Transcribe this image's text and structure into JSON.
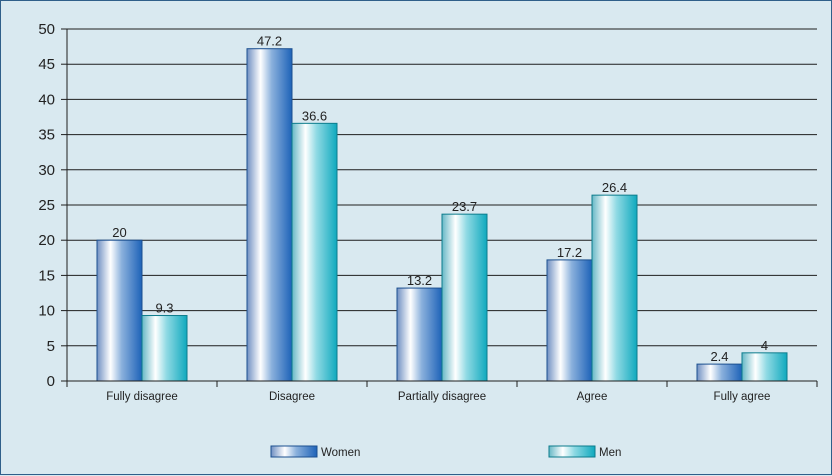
{
  "chart_data": {
    "type": "bar",
    "title": "",
    "xlabel": "",
    "ylabel": "",
    "categories": [
      "Fully disagree",
      "Disagree",
      "Partially disagree",
      "Agree",
      "Fully agree"
    ],
    "series": [
      {
        "name": "Women",
        "values": [
          20,
          47.2,
          13.2,
          17.2,
          2.4
        ],
        "data_labels": [
          "20",
          "47.2",
          "13.2",
          "17.2",
          "2.4"
        ]
      },
      {
        "name": "Men",
        "values": [
          9.3,
          36.6,
          23.7,
          26.4,
          4
        ],
        "data_labels": [
          "9.3",
          "36.6",
          "23.7",
          "26.4",
          "4"
        ]
      }
    ],
    "ylim": [
      0,
      50
    ],
    "yticks": [
      "0",
      "5",
      "10",
      "15",
      "20",
      "25",
      "30",
      "35",
      "40",
      "45",
      "50"
    ],
    "grid": true,
    "legend_position": "bottom",
    "colors": {
      "women": "#2a6fbf",
      "men": "#1aaec0",
      "grid": "#1e1e1e",
      "background": "#d9e9f0"
    }
  }
}
